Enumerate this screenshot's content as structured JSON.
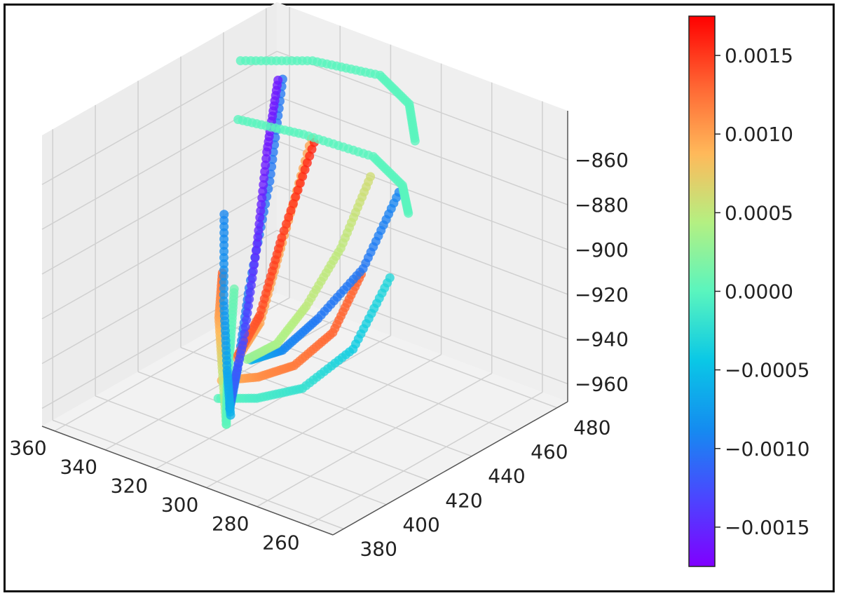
{
  "chart_data": {
    "type": "scatter",
    "projection": "3d",
    "title": "",
    "xlabel": "",
    "ylabel": "",
    "zlabel": "",
    "grid": true,
    "x_ticks": [
      "260",
      "280",
      "300",
      "320",
      "340",
      "360"
    ],
    "y_ticks": [
      "380",
      "400",
      "420",
      "440",
      "460",
      "480"
    ],
    "z_ticks": [
      "−860",
      "−880",
      "−900",
      "−920",
      "−940",
      "−960"
    ],
    "xlim": [
      250,
      365
    ],
    "ylim": [
      375,
      485
    ],
    "zlim": [
      -968,
      -838
    ],
    "colorbar": {
      "colormap": "rainbow",
      "range": [
        -0.00175,
        0.00175
      ],
      "ticks": [
        0.0015,
        0.001,
        0.0005,
        0.0,
        -0.0005,
        -0.001,
        -0.0015
      ],
      "tick_labels": [
        "0.0015",
        "0.0010",
        "0.0005",
        "0.0000",
        "−0.0005",
        "−0.0010",
        "−0.0015"
      ]
    },
    "series": [
      {
        "x": [
          257,
          280,
          300,
          318,
          330
        ],
        "y": [
          410,
          420,
          420,
          420,
          416
        ],
        "z": [
          -875,
          -922,
          -948,
          -960,
          -963
        ],
        "c": [
          -0.0003,
          -0.0004,
          -0.0002,
          -0.0001,
          0.0
        ]
      },
      {
        "x": [
          270,
          288,
          305,
          320,
          332
        ],
        "y": [
          412,
          420,
          422,
          423,
          420
        ],
        "z": [
          -880,
          -918,
          -941,
          -953,
          -958
        ],
        "c": [
          0.0013,
          0.0013,
          0.0012,
          0.0011,
          0.0009
        ]
      },
      {
        "x": [
          272,
          287,
          304,
          318,
          328
        ],
        "y": [
          432,
          433,
          432,
          432,
          429
        ],
        "z": [
          -855,
          -896,
          -925,
          -945,
          -952
        ],
        "c": [
          -0.0009,
          -0.001,
          -0.001,
          -0.0009,
          -0.0006
        ]
      },
      {
        "x": [
          290,
          300,
          312,
          322,
          332
        ],
        "y": [
          440,
          438,
          436,
          434,
          432
        ],
        "z": [
          -860,
          -895,
          -925,
          -945,
          -955
        ],
        "c": [
          0.0006,
          0.0005,
          0.0005,
          0.0004,
          0.0003
        ]
      },
      {
        "x": [
          330,
          328,
          325,
          320
        ],
        "y": [
          418,
          414,
          412,
          408
        ],
        "z": [
          -908,
          -925,
          -945,
          -966
        ],
        "c": [
          0.0013,
          0.001,
          0.0006,
          0.0002
        ]
      },
      {
        "x": [
          327,
          325,
          323,
          320
        ],
        "y": [
          420,
          416,
          412,
          408
        ],
        "z": [
          -915,
          -935,
          -952,
          -966
        ],
        "c": [
          0.0001,
          0.0,
          0.0,
          0.0
        ]
      },
      {
        "x": [
          350,
          345,
          338,
          330,
          322
        ],
        "y": [
          470,
          458,
          440,
          425,
          412
        ],
        "z": [
          -858,
          -895,
          -930,
          -955,
          -962
        ],
        "c": [
          -0.001,
          -0.001,
          -0.001,
          -0.0009,
          -0.0009
        ]
      },
      {
        "x": [
          330,
          332,
          335,
          337
        ],
        "y": [
          425,
          438,
          452,
          468
        ],
        "z": [
          -950,
          -942,
          -915,
          -878
        ],
        "c": [
          0.001,
          0.001,
          0.001,
          0.001
        ]
      },
      {
        "x": [
          334,
          338,
          342,
          346
        ],
        "y": [
          430,
          445,
          460,
          480
        ],
        "z": [
          -953,
          -945,
          -920,
          -890
        ],
        "c": [
          0.0013,
          0.0014,
          0.0015,
          0.0016
        ]
      },
      {
        "x": [
          322,
          336,
          350,
          358,
          362
        ],
        "y": [
          412,
          435,
          458,
          472,
          482
        ],
        "z": [
          -960,
          -950,
          -925,
          -895,
          -870
        ],
        "c": [
          -0.0011,
          -0.0013,
          -0.0015,
          -0.0016,
          -0.0016
        ]
      },
      {
        "x": [
          320,
          334,
          348,
          358
        ],
        "y": [
          410,
          425,
          440,
          452
        ],
        "z": [
          -963,
          -957,
          -940,
          -912
        ],
        "c": [
          -0.0006,
          -0.0007,
          -0.0008,
          -0.0009
        ]
      },
      {
        "x": [
          285,
          300,
          320,
          345,
          365
        ],
        "y": [
          455,
          470,
          480,
          478,
          468
        ],
        "z": [
          -850,
          -848,
          -849,
          -852,
          -855
        ],
        "c": [
          0.0,
          0.0,
          0.0,
          0.0,
          0.0
        ]
      },
      {
        "x": [
          275,
          290,
          310,
          335,
          355
        ],
        "y": [
          440,
          455,
          465,
          462,
          455
        ],
        "z": [
          -870,
          -872,
          -873,
          -872,
          -870
        ],
        "c": [
          0.0,
          0.0,
          0.0,
          0.0,
          0.0
        ]
      }
    ]
  }
}
